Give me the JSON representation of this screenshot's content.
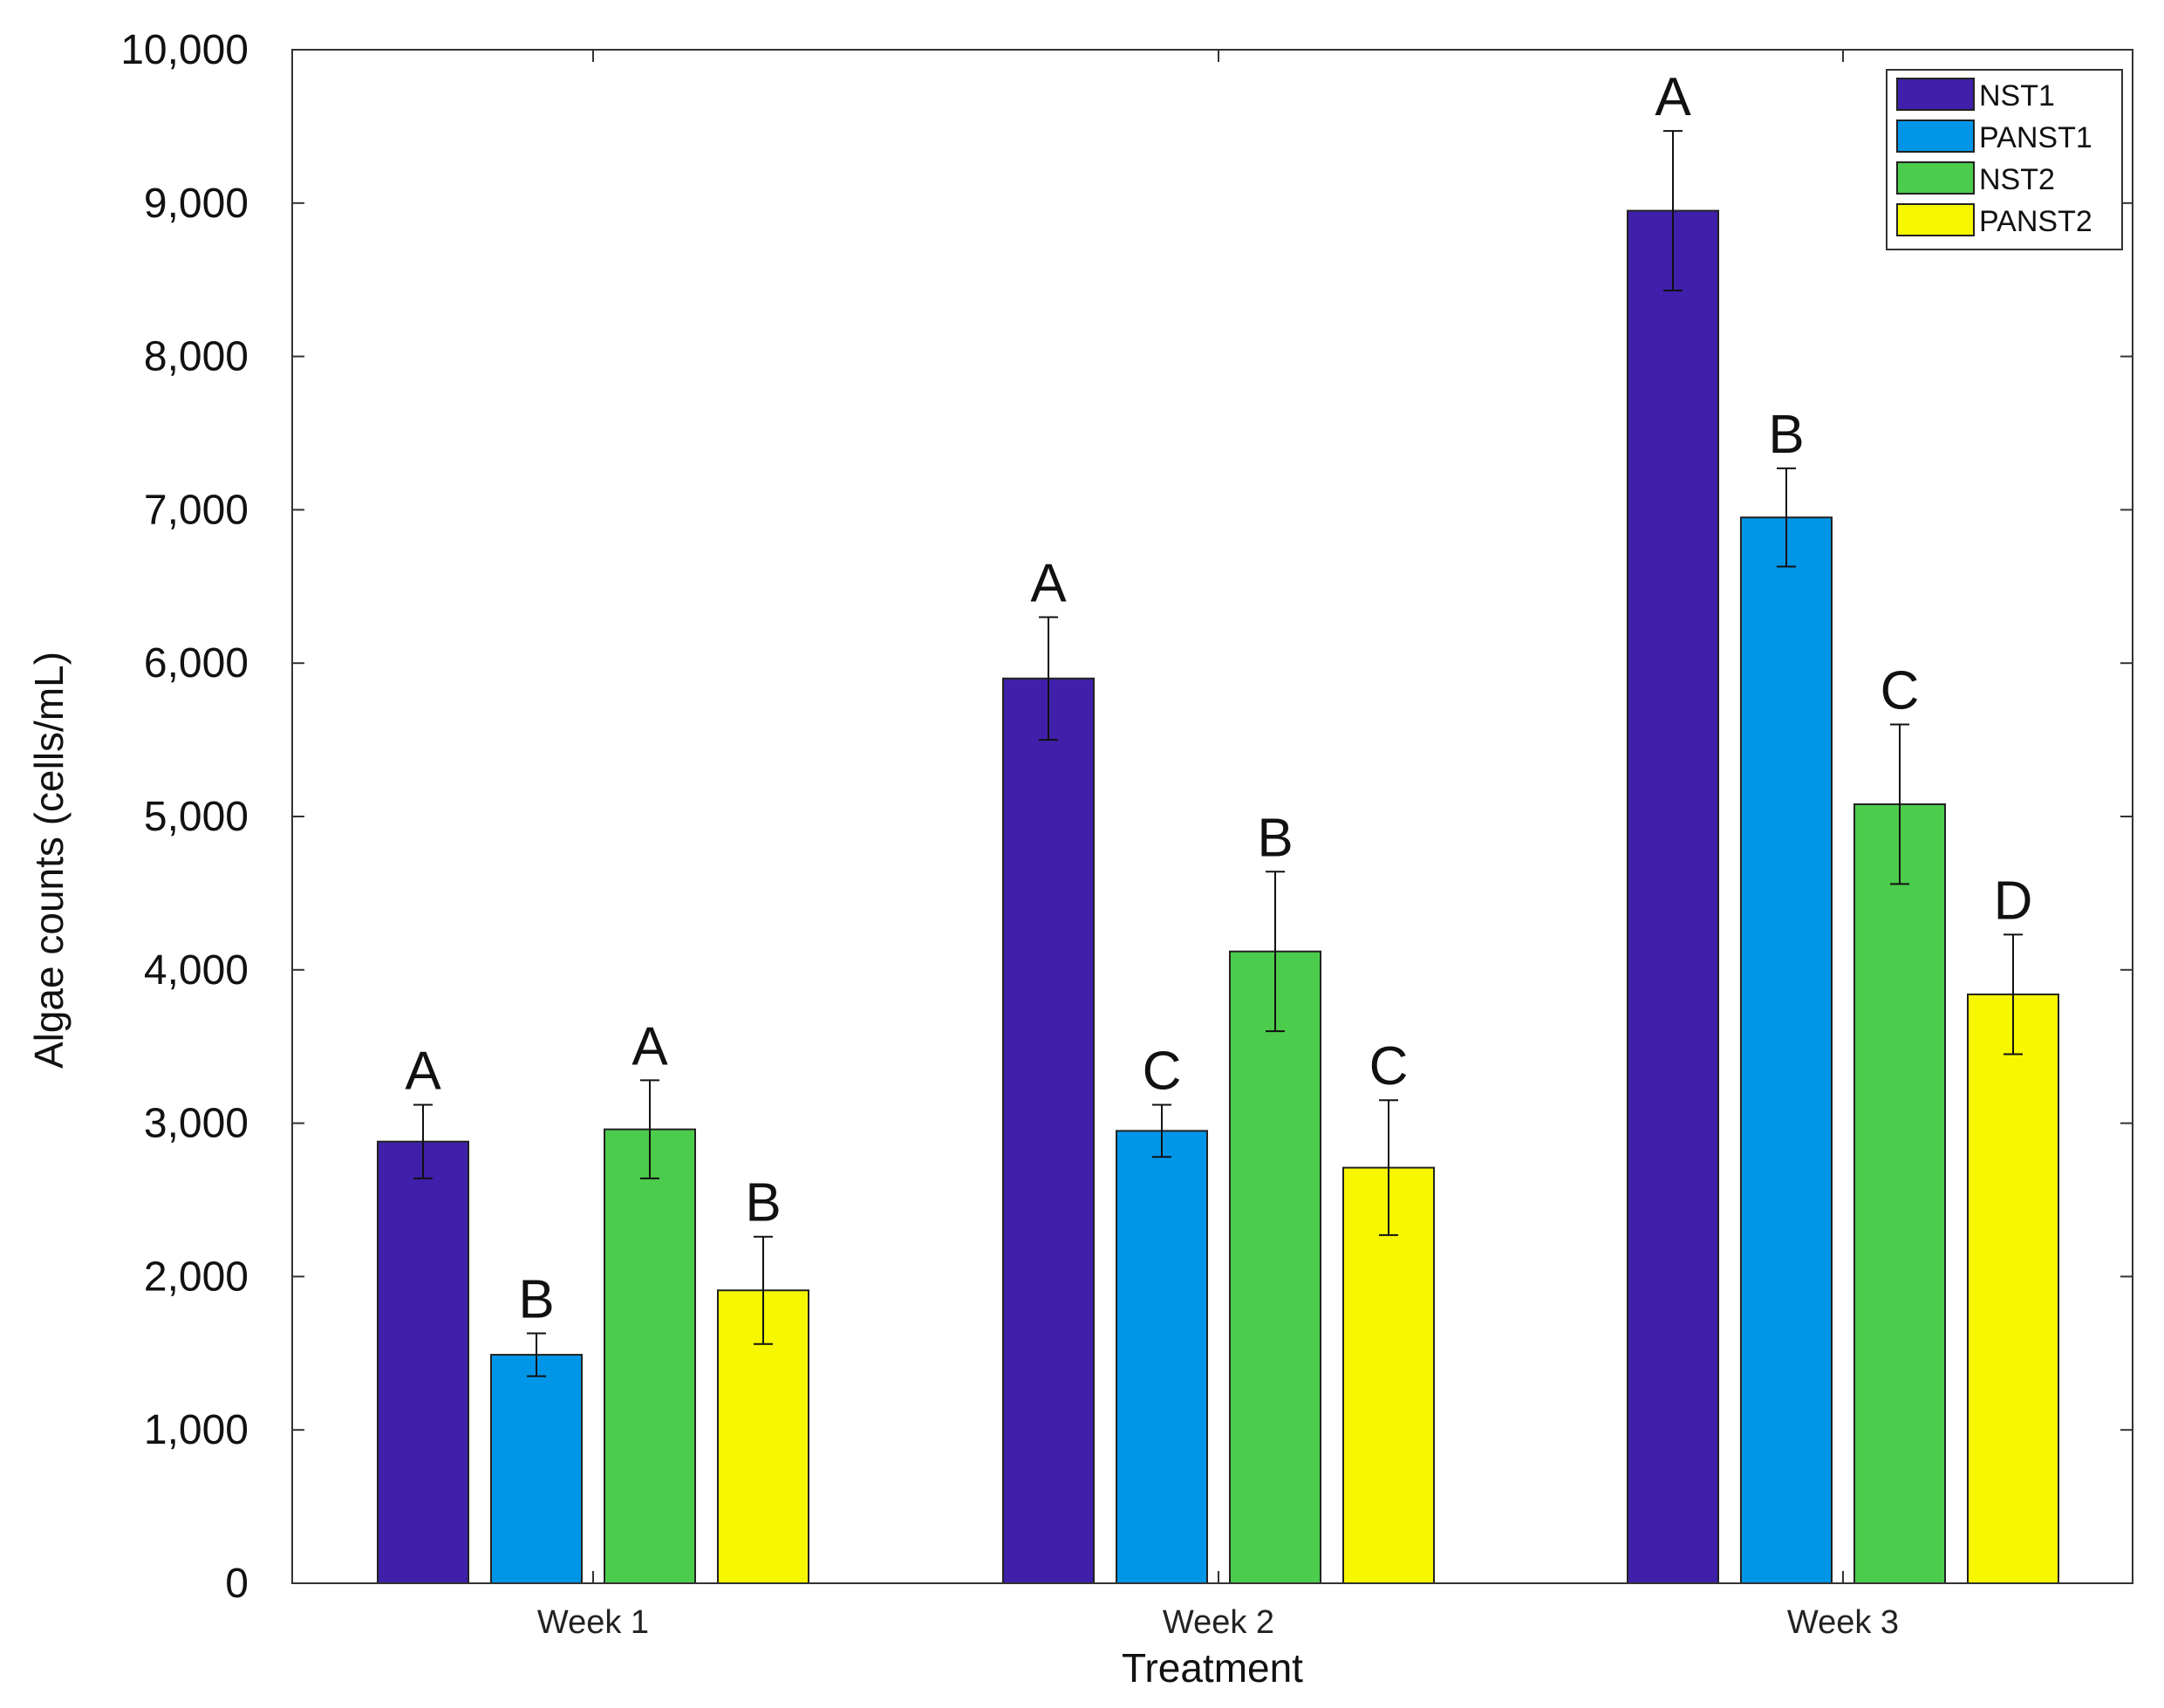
{
  "chart_data": {
    "type": "bar",
    "xlabel": "Treatment",
    "ylabel": "Algae counts (cells/mL)",
    "ylim": [
      0,
      10000
    ],
    "yticks": [
      0,
      1000,
      2000,
      3000,
      4000,
      5000,
      6000,
      7000,
      8000,
      9000,
      10000
    ],
    "ytick_labels": [
      "0",
      "1,000",
      "2,000",
      "3,000",
      "4,000",
      "5,000",
      "6,000",
      "7,000",
      "8,000",
      "9,000",
      "10,000"
    ],
    "categories": [
      "Week 1",
      "Week 2",
      "Week 3"
    ],
    "legend_position": "top-right",
    "grid": false,
    "series": [
      {
        "name": "NST1",
        "color": "#4020aa",
        "values": [
          2880,
          5900,
          8950
        ],
        "errors": [
          240,
          400,
          520
        ],
        "labels": [
          "A",
          "A",
          "A"
        ]
      },
      {
        "name": "PANST1",
        "color": "#0096e8",
        "values": [
          1490,
          2950,
          6950
        ],
        "errors": [
          140,
          170,
          320
        ],
        "labels": [
          "B",
          "C",
          "B"
        ]
      },
      {
        "name": "NST2",
        "color": "#4ccc4c",
        "values": [
          2960,
          4120,
          5080
        ],
        "errors": [
          320,
          520,
          520
        ],
        "labels": [
          "A",
          "B",
          "C"
        ]
      },
      {
        "name": "PANST2",
        "color": "#f7f700",
        "values": [
          1910,
          2710,
          3840
        ],
        "errors": [
          350,
          440,
          390
        ],
        "labels": [
          "B",
          "C",
          "D"
        ]
      }
    ]
  }
}
